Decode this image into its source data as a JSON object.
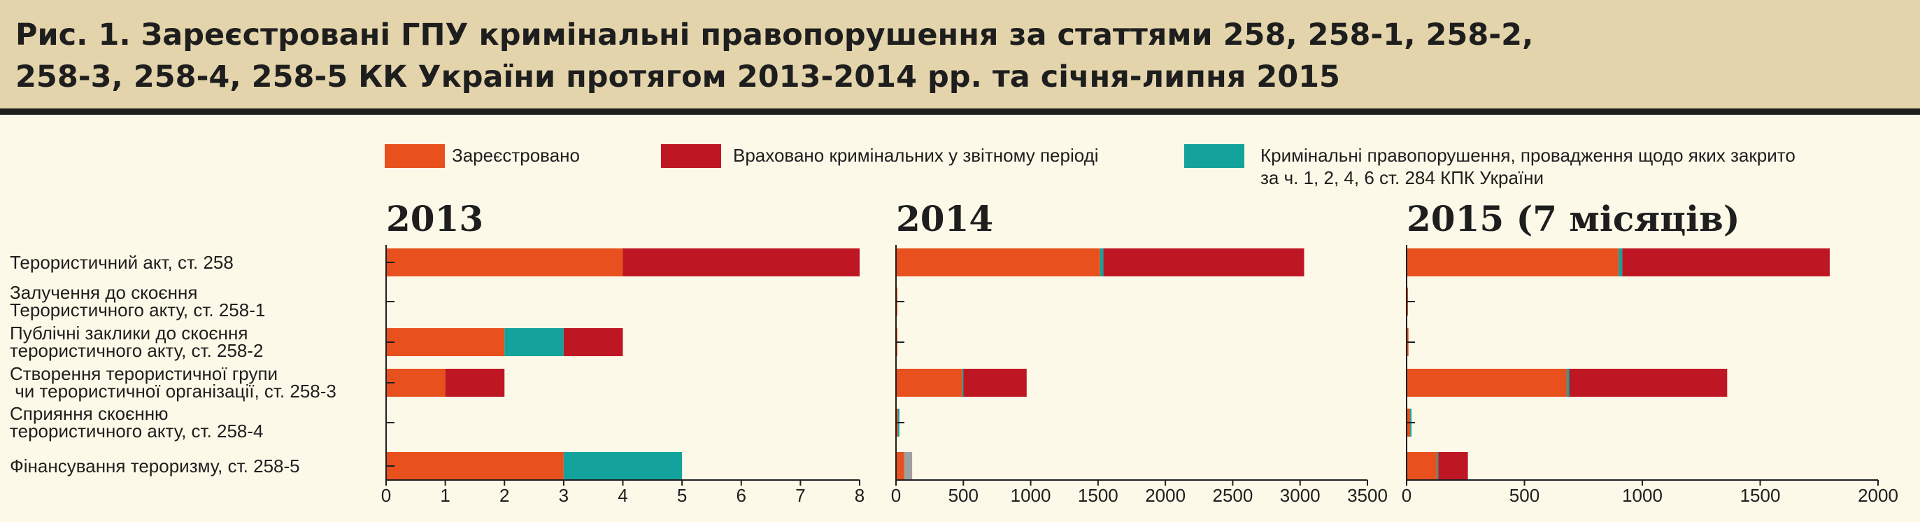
{
  "title_lines": [
    "Рис. 1. Зареєстровані ГПУ кримінальні правопорушення за статтями 258, 258-1, 258-2,",
    "258-3, 258-4, 258-5 КК України протягом 2013-2014 рр. та січня-липня 2015"
  ],
  "legend": [
    {
      "label": "Зареєстровано",
      "color": "#e8501e"
    },
    {
      "label": "Враховано кримінальних у звітному періоді",
      "color": "#bf1624"
    },
    {
      "label_lines": [
        "Кримінальні правопорушення, провадження щодо яких закрито",
        "за ч. 1, 2, 4, 6 ст. 284 КПК України"
      ],
      "color": "#14a29d"
    }
  ],
  "chart_data": {
    "type": "bar",
    "orientation": "horizontal",
    "stacked": true,
    "categories": [
      [
        "Терористичний акт, ст. 258"
      ],
      [
        "Залучення до скоєння",
        "Терористичного акту, ст. 258-1"
      ],
      [
        "Публічні заклики до скоєння",
        "терористичного акту, ст. 258-2"
      ],
      [
        "Створення терористичної групи",
        " чи терористичної організації, ст. 258-3"
      ],
      [
        "Сприяння скоєнню",
        "терористичного акту, ст. 258-4"
      ],
      [
        "Фінансування тероризму, ст. 258-5"
      ]
    ],
    "panels": [
      {
        "title": "2013",
        "xlim": [
          0,
          8
        ],
        "ticks": [
          0,
          1,
          2,
          3,
          4,
          5,
          6,
          7,
          8
        ],
        "tick_labels": [
          "0",
          "1",
          "2",
          "3",
          "4",
          "5",
          "6",
          "7",
          "8"
        ],
        "series": [
          {
            "name": "Зареєстровано",
            "color": "#e8501e",
            "values": [
              4,
              0,
              2,
              1,
              0,
              3
            ]
          },
          {
            "name": "Кримінальні правопорушення, провадження щодо яких закрито за ч. 1, 2, 4, 6 ст. 284 КПК України",
            "color": "#14a29d",
            "values": [
              0,
              0,
              1,
              0,
              0,
              2
            ]
          },
          {
            "name": "Враховано кримінальних у звітному періоді",
            "color": "#bf1624",
            "values": [
              4,
              0,
              1,
              1,
              0,
              0
            ]
          }
        ]
      },
      {
        "title": "2014",
        "xlim": [
          0,
          3500
        ],
        "ticks": [
          0,
          500,
          1000,
          1500,
          2000,
          2500,
          3000,
          3500
        ],
        "tick_labels": [
          "0",
          "500",
          "1000",
          "1500",
          "2000",
          "2500",
          "3000",
          "3500"
        ],
        "series": [
          {
            "name": "Зареєстровано",
            "color": "#e8501e",
            "values": [
              1515,
              5,
              8,
              490,
              15,
              60
            ]
          },
          {
            "name": "Кримінальні правопорушення, провадження щодо яких закрито за ч. 1, 2, 4, 6 ст. 284 КПК України",
            "color": "#14a29d",
            "values": [
              25,
              0,
              0,
              10,
              5,
              0
            ]
          },
          {
            "name": "Враховано кримінальних у звітному періоді",
            "color": "#bf1624",
            "values": [
              1490,
              0,
              0,
              470,
              0,
              0
            ]
          },
          {
            "name": "",
            "color": "#a0a0a0",
            "values": [
              0,
              0,
              0,
              0,
              0,
              60
            ]
          }
        ]
      },
      {
        "title": "2015 (7 місяців)",
        "xlim": [
          0,
          2000
        ],
        "ticks": [
          0,
          500,
          1000,
          1500,
          2000
        ],
        "tick_labels": [
          "0",
          "500",
          "1000",
          "1500",
          "2000"
        ],
        "series": [
          {
            "name": "Зареєстровано",
            "color": "#e8501e",
            "values": [
              900,
              5,
              8,
              680,
              15,
              130
            ]
          },
          {
            "name": "Кримінальні правопорушення, провадження щодо яких закрито за ч. 1, 2, 4, 6 ст. 284 КПК України",
            "color": "#14a29d",
            "values": [
              15,
              0,
              0,
              10,
              5,
              5
            ]
          },
          {
            "name": "Враховано кримінальних у звітному періоді",
            "color": "#bf1624",
            "values": [
              880,
              0,
              0,
              670,
              0,
              125
            ]
          }
        ]
      }
    ]
  }
}
